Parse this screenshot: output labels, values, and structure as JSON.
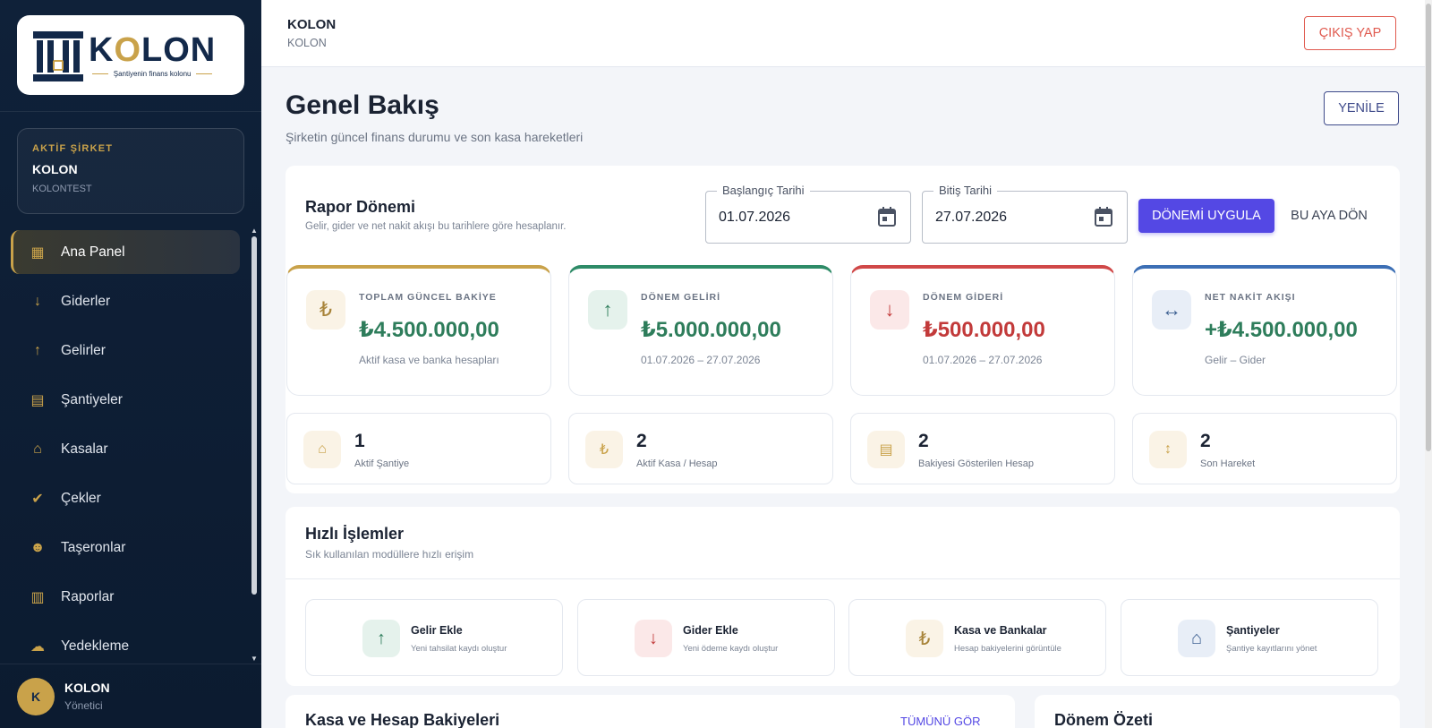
{
  "brand": {
    "logo_word": "KOLON",
    "tagline": "Şantiyenin finans kolonu"
  },
  "company": {
    "label": "AKTİF ŞİRKET",
    "name": "KOLON",
    "sub": "KOLONTEST"
  },
  "nav": [
    {
      "label": "Ana Panel",
      "icon": "dashboard-icon",
      "glyph": "▦",
      "active": true
    },
    {
      "label": "Giderler",
      "icon": "arrow-down-icon",
      "glyph": "↓"
    },
    {
      "label": "Gelirler",
      "icon": "arrow-up-icon",
      "glyph": "↑"
    },
    {
      "label": "Şantiyeler",
      "icon": "building-icon",
      "glyph": "▤"
    },
    {
      "label": "Kasalar",
      "icon": "bank-icon",
      "glyph": "⌂"
    },
    {
      "label": "Çekler",
      "icon": "check-circle-icon",
      "glyph": "✔"
    },
    {
      "label": "Taşeronlar",
      "icon": "people-icon",
      "glyph": "☻"
    },
    {
      "label": "Raporlar",
      "icon": "report-icon",
      "glyph": "▥"
    },
    {
      "label": "Yedekleme",
      "icon": "cloud-upload-icon",
      "glyph": "☁"
    }
  ],
  "user": {
    "initial": "K",
    "name": "KOLON",
    "role": "Yönetici"
  },
  "topbar": {
    "title": "KOLON",
    "sub": "KOLON",
    "logout_label": "ÇIKIŞ YAP"
  },
  "page": {
    "title": "Genel Bakış",
    "subtitle": "Şirketin güncel finans durumu ve son kasa hareketleri",
    "refresh_label": "YENİLE"
  },
  "report": {
    "title": "Rapor Dönemi",
    "subtitle": "Gelir, gider ve net nakit akışı bu tarihlere göre hesaplanır.",
    "start_label": "Başlangıç Tarihi",
    "start_value": "01.07.2026",
    "end_label": "Bitiş Tarihi",
    "end_value": "27.07.2026",
    "apply_label": "DÖNEMİ UYGULA",
    "month_label": "BU AYA DÖN"
  },
  "stats": [
    {
      "label": "TOPLAM GÜNCEL BAKİYE",
      "value": "₺4.500.000,00",
      "note": "Aktif kasa ve banka hesapları",
      "icon": "lira-icon",
      "glyph": "₺",
      "accent": "#c9a24a",
      "value_color": "#2e7d5b",
      "icon_bg": "#faf3e6",
      "icon_color": "#a8843a"
    },
    {
      "label": "DÖNEM GELİRİ",
      "value": "₺5.000.000,00",
      "note": "01.07.2026 – 27.07.2026",
      "icon": "arrow-up-icon",
      "glyph": "↑",
      "accent": "#2e8b67",
      "value_color": "#2e7d5b",
      "icon_bg": "#e5f2ec",
      "icon_color": "#2e7d5b"
    },
    {
      "label": "DÖNEM GİDERİ",
      "value": "₺500.000,00",
      "note": "01.07.2026 – 27.07.2026",
      "icon": "arrow-down-icon",
      "glyph": "↓",
      "accent": "#d04848",
      "value_color": "#c23a3a",
      "icon_bg": "#fbe8e8",
      "icon_color": "#c23a3a"
    },
    {
      "label": "NET NAKİT AKIŞI",
      "value": "+₺4.500.000,00",
      "note": "Gelir – Gider",
      "icon": "swap-horizontal-icon",
      "glyph": "↔",
      "accent": "#3c6fb5",
      "value_color": "#2e7d5b",
      "icon_bg": "#e8eef7",
      "icon_color": "#3c5f91"
    }
  ],
  "mini": [
    {
      "num": "1",
      "label": "Aktif Şantiye",
      "icon": "home-icon",
      "glyph": "⌂"
    },
    {
      "num": "2",
      "label": "Aktif Kasa / Hesap",
      "icon": "lira-icon",
      "glyph": "₺"
    },
    {
      "num": "2",
      "label": "Bakiyesi Gösterilen Hesap",
      "icon": "ledger-icon",
      "glyph": "▤"
    },
    {
      "num": "2",
      "label": "Son Hareket",
      "icon": "swap-vertical-icon",
      "glyph": "↕"
    }
  ],
  "quick": {
    "title": "Hızlı İşlemler",
    "subtitle": "Sık kullanılan modüllere hızlı erişim",
    "items": [
      {
        "name": "Gelir Ekle",
        "desc": "Yeni tahsilat kaydı oluştur",
        "icon": "arrow-up-icon",
        "glyph": "↑",
        "bg": "#e5f2ec",
        "color": "#2e7d5b"
      },
      {
        "name": "Gider Ekle",
        "desc": "Yeni ödeme kaydı oluştur",
        "icon": "arrow-down-icon",
        "glyph": "↓",
        "bg": "#fbe8e8",
        "color": "#c23a3a"
      },
      {
        "name": "Kasa ve Bankalar",
        "desc": "Hesap bakiyelerini görüntüle",
        "icon": "lira-icon",
        "glyph": "₺",
        "bg": "#faf3e6",
        "color": "#a8843a"
      },
      {
        "name": "Şantiyeler",
        "desc": "Şantiye kayıtlarını yönet",
        "icon": "home-icon",
        "glyph": "⌂",
        "bg": "#e8eef7",
        "color": "#3c5f91"
      }
    ]
  },
  "balances": {
    "title": "Kasa ve Hesap Bakiyeleri",
    "link": "TÜMÜNÜ GÖR"
  },
  "summary": {
    "title": "Dönem Özeti"
  }
}
